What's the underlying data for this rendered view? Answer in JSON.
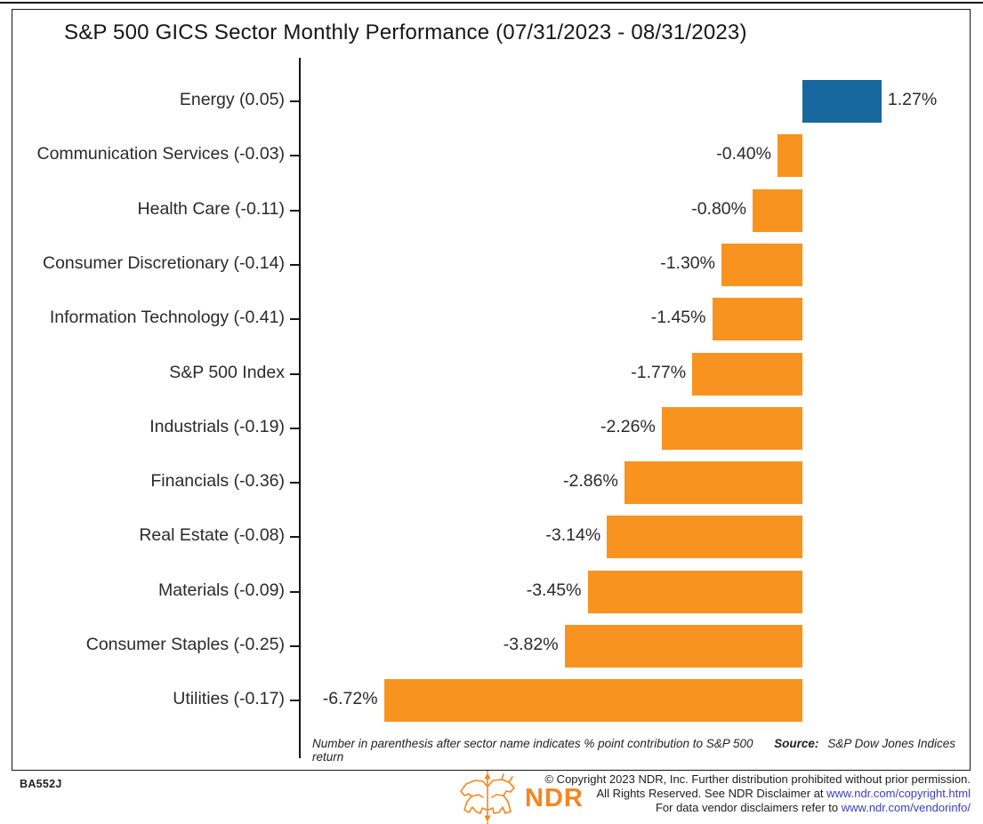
{
  "title": "S&P 500 GICS Sector Monthly Performance (07/31/2023 - 08/31/2023)",
  "chart_data": {
    "type": "bar",
    "orientation": "horizontal",
    "title": "S&P 500 GICS Sector Monthly Performance (07/31/2023 - 08/31/2023)",
    "xlabel": "",
    "ylabel": "",
    "xlim": [
      -8.1,
      2.75
    ],
    "grid": false,
    "legend": false,
    "categories": [
      "Energy (0.05)",
      "Communication Services (-0.03)",
      "Health Care (-0.11)",
      "Consumer Discretionary (-0.14)",
      "Information Technology (-0.41)",
      "S&P 500 Index",
      "Industrials (-0.19)",
      "Financials (-0.36)",
      "Real Estate (-0.08)",
      "Materials (-0.09)",
      "Consumer Staples (-0.25)",
      "Utilities (-0.17)"
    ],
    "values": [
      1.27,
      -0.4,
      -0.8,
      -1.3,
      -1.45,
      -1.77,
      -2.26,
      -2.86,
      -3.14,
      -3.45,
      -3.82,
      -6.72
    ],
    "value_labels": [
      "1.27%",
      "-0.40%",
      "-0.80%",
      "-1.30%",
      "-1.45%",
      "-1.77%",
      "-2.26%",
      "-2.86%",
      "-3.14%",
      "-3.45%",
      "-3.82%",
      "-6.72%"
    ],
    "positive_color": "#17689E",
    "negative_color": "#F89320"
  },
  "footnote": "Number in parenthesis after sector name indicates % point contribution to S&P 500 return",
  "source": {
    "label": "Source:",
    "value": "S&P Dow Jones Indices"
  },
  "chart_id": "BA552J",
  "logo": {
    "text": "NDR",
    "icon": "bull-bear-arrow-icon",
    "color": "#F5861F"
  },
  "copyright": {
    "line1": "© Copyright 2023 NDR, Inc. Further distribution prohibited without prior permission.",
    "line2_prefix": "All Rights Reserved. See NDR Disclaimer at ",
    "line2_link": "www.ndr.com/copyright.html",
    "line3_prefix": "For data vendor disclaimers refer to ",
    "line3_link": "www.ndr.com/vendorinfo/",
    "link_color": "#3b3ec2"
  }
}
